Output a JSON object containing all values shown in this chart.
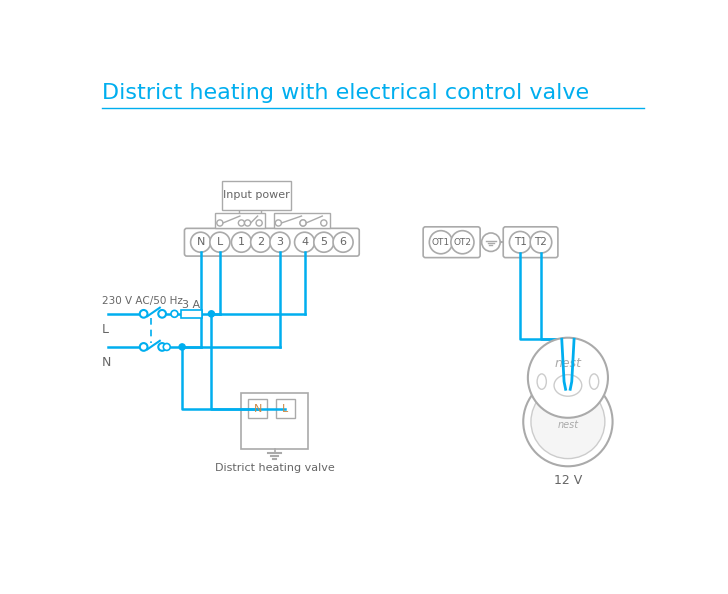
{
  "title": "District heating with electrical control valve",
  "title_color": "#00AEEF",
  "title_fontsize": 16,
  "line_color": "#00AEEF",
  "strip_color": "#aaaaaa",
  "text_color": "#666666",
  "bg_color": "#ffffff",
  "sub_title_valve": "District heating valve",
  "sub_title_nest": "12 V",
  "strip1_labels": [
    "N",
    "L",
    "1",
    "2",
    "3",
    "4",
    "5",
    "6"
  ],
  "strip2_labels": [
    "OT1",
    "OT2"
  ],
  "strip3_labels": [
    "T1",
    "T2"
  ],
  "label_230": "230 V AC/50 Hz",
  "label_L": "L",
  "label_N": "N",
  "label_3A": "3 A",
  "label_input_power": "Input power"
}
